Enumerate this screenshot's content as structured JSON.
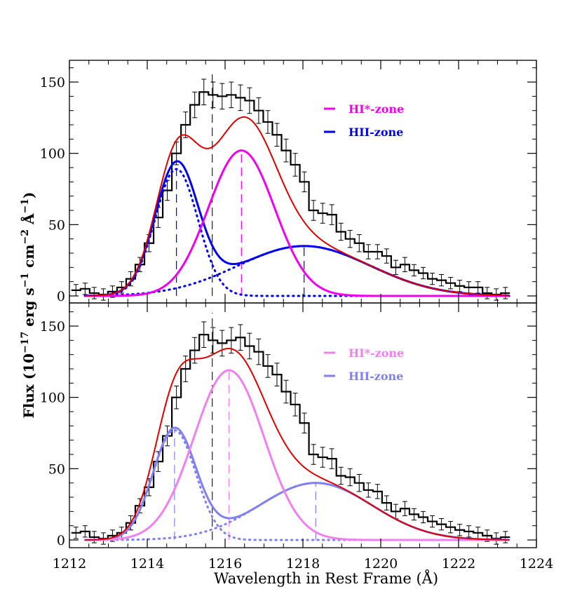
{
  "chart_data": {
    "type": "line",
    "xlabel": "Wavelength in Rest Frame (Å)",
    "ylabel": "Flux (10^-17 erg s^-1 cm^-2 Å^-1)",
    "ylabel_parts": {
      "prefix": "Flux (10",
      "exp1": "−17",
      "mid1": " erg s",
      "exp2": "−1",
      "mid2": " cm",
      "exp3": "−2",
      "mid3": " Å",
      "exp4": "−1",
      "suffix": ")"
    },
    "xlim": [
      1212,
      1224
    ],
    "ylim": [
      0,
      160
    ],
    "x_ticks": [
      1212,
      1214,
      1216,
      1218,
      1220,
      1222,
      1224
    ],
    "y_ticks": [
      0,
      50,
      100,
      150
    ],
    "colors": {
      "data": "#000000",
      "total": "#dd0000",
      "hi_top": "#ee00ee",
      "hii_top": "#0000ee",
      "hi_bottom": "#f080f0",
      "hii_bottom": "#8080f0",
      "marker": "#555555"
    },
    "panels": [
      {
        "name": "top",
        "legend": [
          {
            "label": "HI*-zone",
            "color": "#ee00ee"
          },
          {
            "label": "HII-zone",
            "color": "#0000ee"
          }
        ],
        "center_marker": 1215.67,
        "component_markers": [
          {
            "x": 1214.75,
            "y": 89,
            "color": "#0000ee"
          },
          {
            "x": 1216.42,
            "y": 102,
            "color": "#ee00ee"
          },
          {
            "x": 1218.03,
            "y": 35,
            "color": "#0000ee"
          }
        ],
        "hi_gauss": {
          "amp": 102,
          "mu": 1216.42,
          "sigma": 0.85
        },
        "hii_gauss1": {
          "amp": 89,
          "mu": 1214.75,
          "sigma": 0.55
        },
        "hii_gauss2": {
          "amp": 35,
          "mu": 1218.03,
          "sigma": 1.7
        },
        "data_flux": [
          4,
          5,
          2,
          1,
          3,
          6,
          12,
          22,
          37,
          55,
          74,
          100,
          120,
          134,
          143,
          141,
          140,
          141,
          139,
          137,
          130,
          122,
          113,
          102,
          92,
          80,
          60,
          58,
          57,
          45,
          40,
          37,
          31,
          31,
          28,
          20,
          22,
          18,
          16,
          12,
          11,
          9,
          7,
          6,
          6,
          2,
          1,
          2
        ],
        "data_err": [
          4,
          4,
          4,
          4,
          4,
          4,
          5,
          5,
          6,
          7,
          7,
          8,
          9,
          9,
          9,
          9,
          9,
          9,
          9,
          9,
          9,
          8,
          8,
          8,
          8,
          7,
          7,
          7,
          7,
          6,
          6,
          6,
          5,
          5,
          5,
          5,
          5,
          4,
          4,
          4,
          4,
          4,
          4,
          4,
          4,
          4,
          4,
          4
        ]
      },
      {
        "name": "bottom",
        "legend": [
          {
            "label": "HI*-zone",
            "color": "#f080f0"
          },
          {
            "label": "HII-zone",
            "color": "#8080f0"
          }
        ],
        "center_marker": 1215.67,
        "component_markers": [
          {
            "x": 1214.7,
            "y": 77,
            "color": "#8080f0"
          },
          {
            "x": 1216.1,
            "y": 119,
            "color": "#f080f0"
          },
          {
            "x": 1218.33,
            "y": 40,
            "color": "#8080f0"
          }
        ],
        "hi_gauss": {
          "amp": 119,
          "mu": 1216.1,
          "sigma": 0.9
        },
        "hii_gauss1": {
          "amp": 77,
          "mu": 1214.7,
          "sigma": 0.55
        },
        "hii_gauss2": {
          "amp": 40,
          "mu": 1218.33,
          "sigma": 1.45
        },
        "data_flux": [
          5,
          6,
          2,
          1,
          3,
          5,
          12,
          24,
          37,
          55,
          73,
          100,
          120,
          133,
          144,
          140,
          138,
          140,
          142,
          136,
          132,
          122,
          116,
          104,
          95,
          82,
          60,
          58,
          57,
          45,
          44,
          40,
          35,
          34,
          26,
          20,
          22,
          18,
          16,
          13,
          11,
          9,
          7,
          6,
          5,
          3,
          1,
          2
        ],
        "data_err": [
          4,
          4,
          4,
          4,
          4,
          4,
          5,
          5,
          6,
          7,
          7,
          8,
          9,
          9,
          9,
          9,
          9,
          9,
          9,
          9,
          9,
          8,
          8,
          8,
          8,
          7,
          7,
          7,
          7,
          6,
          6,
          6,
          5,
          5,
          5,
          5,
          5,
          4,
          4,
          4,
          4,
          4,
          4,
          4,
          4,
          4,
          4,
          4
        ]
      }
    ]
  }
}
